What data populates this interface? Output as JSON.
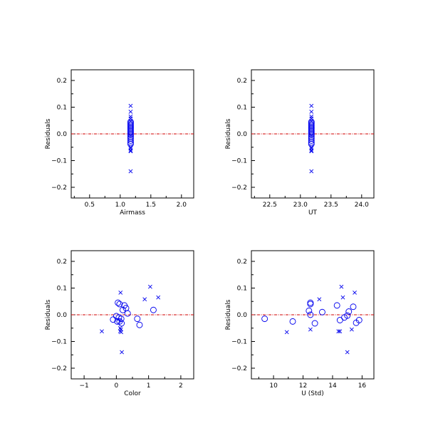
{
  "chart_data": [
    {
      "type": "scatter",
      "xlabel": "Airmass",
      "ylabel": "Residuals",
      "xlim": [
        0.2,
        2.2
      ],
      "ylim": [
        -0.24,
        0.24
      ],
      "xticks": [
        "0.5",
        "1.0",
        "1.5",
        "2.0"
      ],
      "yticks": [
        "0.2",
        "0.1",
        "0.0",
        "−0.1",
        "−0.2"
      ],
      "grid": false,
      "series": [
        {
          "marker": "x",
          "color": "#0000ee",
          "x": [
            1.17,
            1.17,
            1.17,
            1.17,
            1.17,
            1.17,
            1.17,
            1.17,
            1.17,
            1.17
          ],
          "y": [
            0.105,
            0.083,
            0.065,
            0.058,
            0.048,
            -0.05,
            -0.062,
            -0.065,
            -0.055,
            -0.14
          ]
        },
        {
          "marker": "circle",
          "color": "#0000ee",
          "x": [
            1.17,
            1.17,
            1.17,
            1.17,
            1.17,
            1.17,
            1.17,
            1.17,
            1.17,
            1.17,
            1.17,
            1.17,
            1.17,
            1.17,
            1.17,
            1.17
          ],
          "y": [
            0.045,
            0.04,
            0.035,
            0.03,
            0.025,
            0.02,
            0.015,
            0.01,
            0.005,
            0.0,
            -0.005,
            -0.012,
            -0.018,
            -0.025,
            -0.032,
            -0.038
          ]
        }
      ]
    },
    {
      "type": "scatter",
      "xlabel": "UT",
      "ylabel": "Residuals",
      "xlim": [
        22.2,
        24.2
      ],
      "ylim": [
        -0.24,
        0.24
      ],
      "xticks": [
        "22.5",
        "23.0",
        "23.5",
        "24.0"
      ],
      "yticks": [
        "0.2",
        "0.1",
        "0.0",
        "−0.1",
        "−0.2"
      ],
      "grid": false,
      "series": [
        {
          "marker": "x",
          "color": "#0000ee",
          "x": [
            23.18,
            23.18,
            23.18,
            23.18,
            23.18,
            23.18,
            23.18,
            23.18,
            23.18,
            23.18
          ],
          "y": [
            0.105,
            0.083,
            0.065,
            0.058,
            0.048,
            -0.05,
            -0.062,
            -0.065,
            -0.055,
            -0.14
          ]
        },
        {
          "marker": "circle",
          "color": "#0000ee",
          "x": [
            23.18,
            23.18,
            23.18,
            23.18,
            23.18,
            23.18,
            23.18,
            23.18,
            23.18,
            23.18,
            23.18,
            23.18,
            23.18,
            23.18,
            23.18,
            23.18
          ],
          "y": [
            0.045,
            0.04,
            0.035,
            0.03,
            0.025,
            0.02,
            0.015,
            0.01,
            0.005,
            0.0,
            -0.005,
            -0.012,
            -0.018,
            -0.025,
            -0.032,
            -0.038
          ]
        }
      ]
    },
    {
      "type": "scatter",
      "xlabel": "Color",
      "ylabel": "Residuals",
      "xlim": [
        -1.4,
        2.4
      ],
      "ylim": [
        -0.24,
        0.24
      ],
      "xticks": [
        "−1",
        "0",
        "1",
        "2"
      ],
      "yticks": [
        "0.2",
        "0.1",
        "0.0",
        "−0.1",
        "−0.2"
      ],
      "grid": false,
      "series": [
        {
          "marker": "x",
          "color": "#0000ee",
          "x": [
            0.13,
            1.05,
            1.3,
            0.88,
            0.12,
            0.12,
            0.15,
            -0.45,
            0.14,
            0.17
          ],
          "y": [
            0.083,
            0.105,
            0.065,
            0.058,
            -0.05,
            -0.062,
            -0.065,
            -0.062,
            -0.055,
            -0.14
          ]
        },
        {
          "marker": "circle",
          "color": "#0000ee",
          "x": [
            0.05,
            0.1,
            0.25,
            0.3,
            0.2,
            1.15,
            0.35,
            0.0,
            0.08,
            0.15,
            -0.1,
            0.65,
            0.03,
            0.1,
            0.72,
            0.16
          ],
          "y": [
            0.045,
            0.04,
            0.035,
            0.025,
            0.018,
            0.018,
            0.005,
            -0.005,
            -0.01,
            -0.015,
            -0.018,
            -0.015,
            -0.025,
            -0.025,
            -0.038,
            -0.032
          ]
        }
      ]
    },
    {
      "type": "scatter",
      "xlabel": "U (Std)",
      "ylabel": "Residuals",
      "xlim": [
        8.5,
        16.8
      ],
      "ylim": [
        -0.24,
        0.24
      ],
      "xticks": [
        "10",
        "12",
        "14",
        "16"
      ],
      "yticks": [
        "0.2",
        "0.1",
        "0.0",
        "−0.1",
        "−0.2"
      ],
      "grid": false,
      "series": [
        {
          "marker": "x",
          "color": "#0000ee",
          "x": [
            14.6,
            15.5,
            14.7,
            13.1,
            12.5,
            14.5,
            15.3,
            10.9,
            14.4,
            15.0
          ],
          "y": [
            0.105,
            0.083,
            0.065,
            0.058,
            -0.055,
            -0.062,
            -0.055,
            -0.065,
            -0.062,
            -0.14
          ]
        },
        {
          "marker": "circle",
          "color": "#0000ee",
          "x": [
            12.5,
            12.5,
            14.3,
            15.4,
            12.4,
            15.1,
            13.3,
            12.5,
            15.0,
            14.8,
            9.4,
            14.5,
            15.8,
            11.3,
            15.6,
            12.8
          ],
          "y": [
            0.045,
            0.04,
            0.035,
            0.03,
            0.015,
            0.012,
            0.01,
            0.0,
            -0.003,
            -0.01,
            -0.015,
            -0.02,
            -0.02,
            -0.025,
            -0.03,
            -0.032
          ]
        }
      ]
    }
  ]
}
